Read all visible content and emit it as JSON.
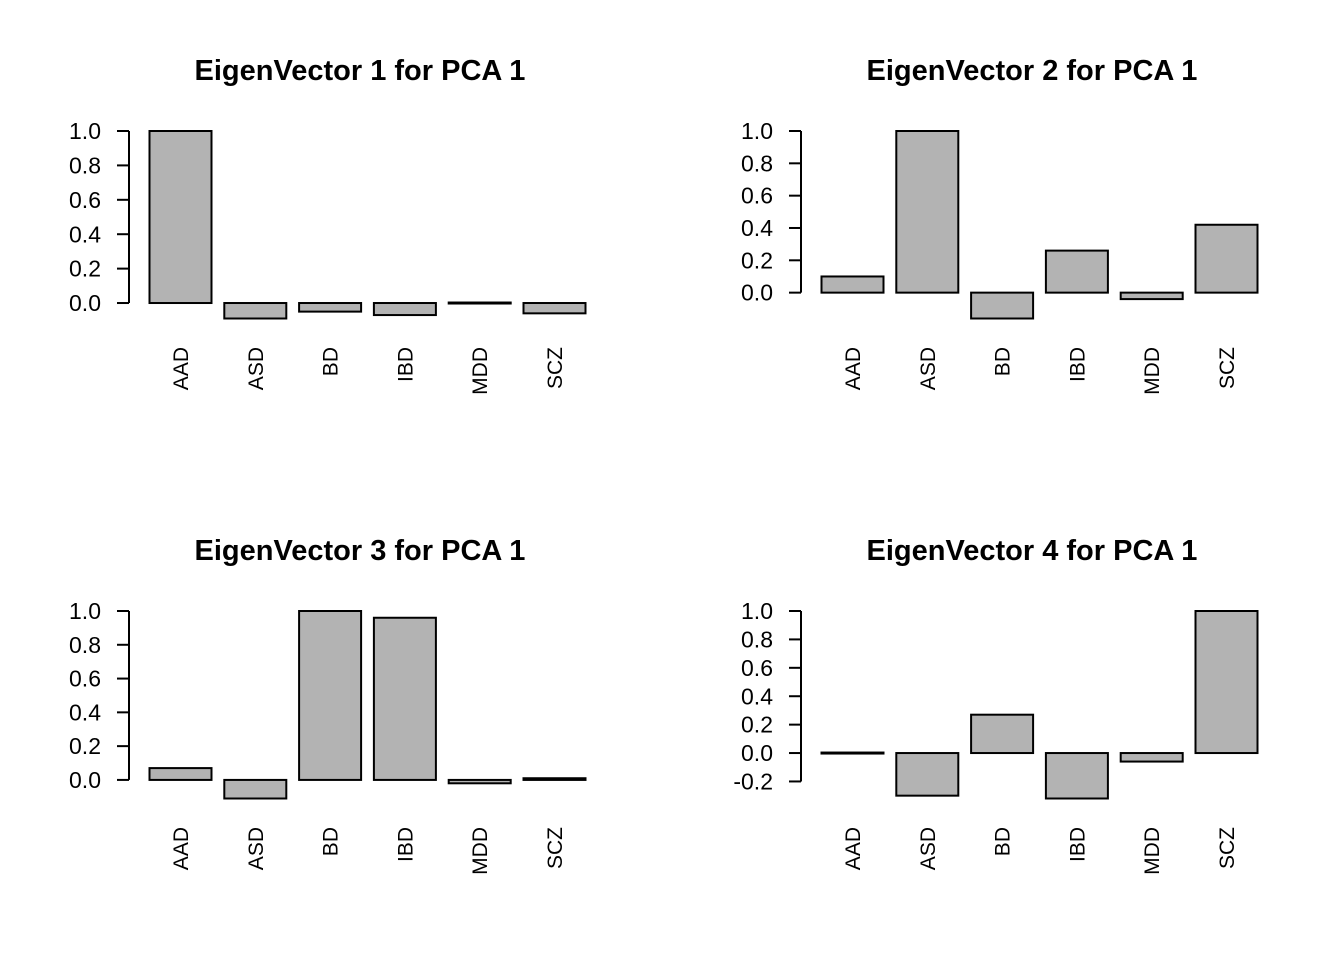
{
  "figure": {
    "description": "2x2 grid of base-R style barplots of PCA eigenvectors",
    "background": "#ffffff",
    "colors": {
      "bar_fill": "#b3b3b3",
      "bar_stroke": "#000000",
      "axis": "#000000",
      "text": "#000000"
    }
  },
  "chart_data": [
    {
      "type": "bar",
      "title": "EigenVector 1 for PCA 1",
      "categories": [
        "AAD",
        "ASD",
        "BD",
        "IBD",
        "MDD",
        "SCZ"
      ],
      "values": [
        1.0,
        -0.09,
        -0.05,
        -0.07,
        0.0,
        -0.06
      ],
      "xlabel": "",
      "ylabel": "",
      "ylim": [
        -0.09,
        1.0
      ],
      "yticks": [
        "0.0",
        "0.2",
        "0.4",
        "0.6",
        "0.8",
        "1.0"
      ],
      "grid": false,
      "legend": "none"
    },
    {
      "type": "bar",
      "title": "EigenVector 2 for PCA 1",
      "categories": [
        "AAD",
        "ASD",
        "BD",
        "IBD",
        "MDD",
        "SCZ"
      ],
      "values": [
        0.1,
        1.0,
        -0.16,
        0.26,
        -0.04,
        0.42
      ],
      "xlabel": "",
      "ylabel": "",
      "ylim": [
        -0.16,
        1.0
      ],
      "yticks": [
        "0.0",
        "0.2",
        "0.4",
        "0.6",
        "0.8",
        "1.0"
      ],
      "grid": false,
      "legend": "none"
    },
    {
      "type": "bar",
      "title": "EigenVector 3 for PCA 1",
      "categories": [
        "AAD",
        "ASD",
        "BD",
        "IBD",
        "MDD",
        "SCZ"
      ],
      "values": [
        0.07,
        -0.11,
        1.0,
        0.96,
        -0.02,
        0.01
      ],
      "xlabel": "",
      "ylabel": "",
      "ylim": [
        -0.11,
        1.0
      ],
      "yticks": [
        "0.0",
        "0.2",
        "0.4",
        "0.6",
        "0.8",
        "1.0"
      ],
      "grid": false,
      "legend": "none"
    },
    {
      "type": "bar",
      "title": "EigenVector 4 for PCA 1",
      "categories": [
        "AAD",
        "ASD",
        "BD",
        "IBD",
        "MDD",
        "SCZ"
      ],
      "values": [
        0.0,
        -0.3,
        0.27,
        -0.32,
        -0.06,
        1.0
      ],
      "xlabel": "",
      "ylabel": "",
      "ylim": [
        -0.32,
        1.0
      ],
      "yticks": [
        "-0.2",
        "0.0",
        "0.2",
        "0.4",
        "0.6",
        "0.8",
        "1.0"
      ],
      "grid": false,
      "legend": "none"
    }
  ]
}
